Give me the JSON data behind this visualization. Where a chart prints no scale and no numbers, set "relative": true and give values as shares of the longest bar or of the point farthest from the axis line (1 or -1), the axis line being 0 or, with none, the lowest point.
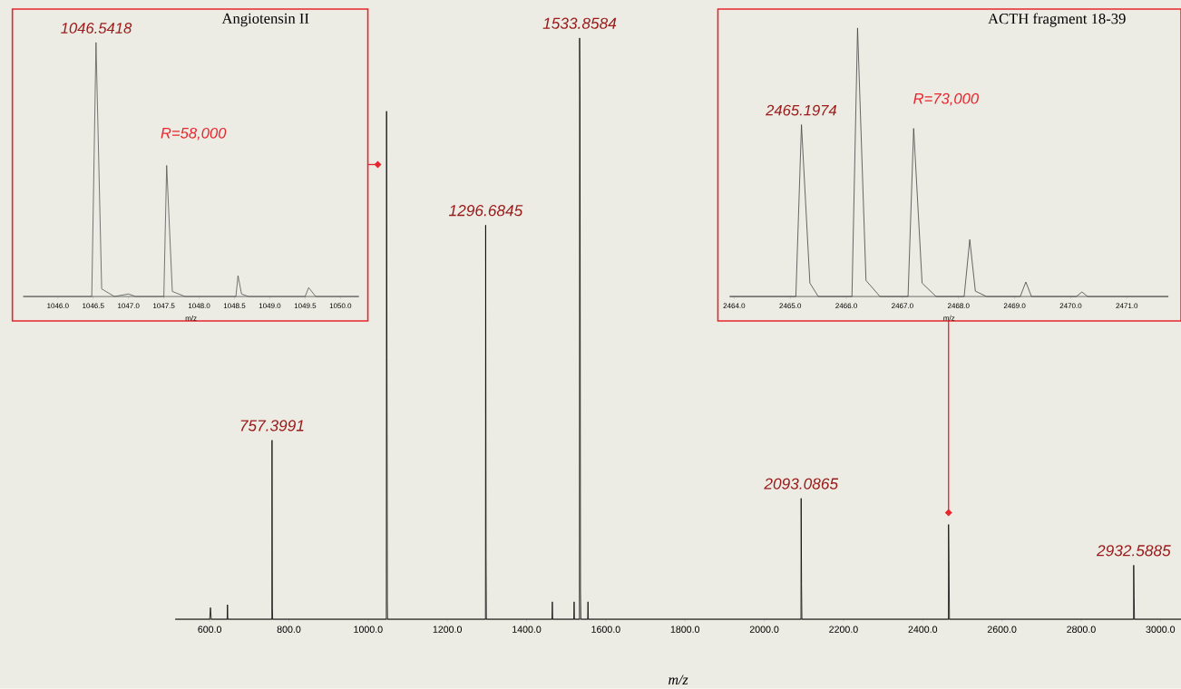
{
  "chart_data": [
    {
      "type": "line",
      "title": "Angiotensin II",
      "xlabel": "m/z",
      "relative": true,
      "color": "#555555",
      "x": [
        1045.51,
        1046.48,
        1046.54,
        1046.62,
        1046.8,
        1047.0,
        1047.1,
        1047.5,
        1047.54,
        1047.62,
        1047.8,
        1048.52,
        1048.55,
        1048.6,
        1048.7,
        1049.5,
        1049.55,
        1049.65,
        1050.26
      ],
      "values": [
        0,
        0,
        1,
        0.03,
        0,
        0.01,
        0,
        0,
        0.516,
        0.02,
        0,
        0,
        0.082,
        0.01,
        0,
        0,
        0.035,
        0,
        0
      ],
      "xlim": [
        1045.51,
        1050.26
      ],
      "xticks": [
        {
          "value": 1046.0,
          "label": "1046.0"
        },
        {
          "value": 1046.5,
          "label": "1046.5"
        },
        {
          "value": 1047.0,
          "label": "1047.0"
        },
        {
          "value": 1047.5,
          "label": "1047.5"
        },
        {
          "value": 1048.0,
          "label": "1048.0"
        },
        {
          "value": 1048.5,
          "label": "1048.5"
        },
        {
          "value": 1049.0,
          "label": "1049.0"
        },
        {
          "value": 1049.5,
          "label": "1049.5"
        },
        {
          "value": 1050.0,
          "label": "1050.0"
        }
      ],
      "annotations": [
        {
          "text": "1046.5418",
          "x": 1046.5418,
          "y": 1
        },
        "R=58,000"
      ]
    },
    {
      "type": "line",
      "title": "ACTH fragment 18-39",
      "xlabel": "m/z",
      "relative": true,
      "color": "#444444",
      "x": [
        2463.92,
        2465.1,
        2465.2,
        2465.35,
        2465.5,
        2466.1,
        2466.2,
        2466.35,
        2466.6,
        2467.1,
        2467.2,
        2467.35,
        2467.6,
        2468.1,
        2468.2,
        2468.3,
        2468.5,
        2469.1,
        2469.2,
        2469.3,
        2470.1,
        2470.2,
        2470.3,
        2471.74
      ],
      "values": [
        0,
        0,
        0.64,
        0.05,
        0,
        0,
        1,
        0.06,
        0,
        0,
        0.626,
        0.05,
        0,
        0,
        0.212,
        0.02,
        0,
        0,
        0.054,
        0,
        0,
        0.017,
        0,
        0
      ],
      "xlim": [
        2463.92,
        2471.74
      ],
      "xticks": [
        {
          "value": 2464,
          "label": "2464.0"
        },
        {
          "value": 2465,
          "label": "2465.0"
        },
        {
          "value": 2466,
          "label": "2466.0"
        },
        {
          "value": 2467,
          "label": "2467.0"
        },
        {
          "value": 2468,
          "label": "2468.0"
        },
        {
          "value": 2469,
          "label": "2469.0"
        },
        {
          "value": 2470,
          "label": "2470.0"
        },
        {
          "value": 2471,
          "label": "2471.0"
        }
      ],
      "annotations": [
        {
          "text": "2465.1974",
          "x": 2465.1974,
          "y": 0.64
        },
        "R=73,000"
      ]
    },
    {
      "type": "line",
      "xlabel": "m/z",
      "relative": true,
      "color": "#000000",
      "x": [
        513,
        600,
        602,
        604,
        644,
        645,
        646,
        756.9,
        757.4,
        758.4,
        759,
        1045.9,
        1046.54,
        1047.5,
        1048.5,
        1049,
        1296.2,
        1296.68,
        1297.7,
        1298.5,
        1464,
        1465,
        1466,
        1519,
        1520,
        1521,
        1533.4,
        1533.86,
        1534.86,
        1536,
        1537,
        1554,
        1555,
        1556,
        2092.6,
        2093.09,
        2094.1,
        2095,
        2464.7,
        2465.2,
        2466.2,
        2467.5,
        2932.1,
        2932.59,
        2933.6,
        2934.5,
        3052
      ],
      "values": [
        0,
        0,
        0.02,
        0,
        0,
        0.025,
        0,
        0,
        0.308,
        0.02,
        0,
        0,
        0.874,
        0.45,
        0.03,
        0,
        0,
        0.678,
        0.11,
        0,
        0,
        0.03,
        0,
        0,
        0.03,
        0,
        0,
        1,
        0.894,
        0.05,
        0,
        0,
        0.03,
        0,
        0,
        0.208,
        0.06,
        0,
        0,
        0.163,
        0.104,
        0,
        0,
        0.093,
        0.04,
        0,
        0
      ],
      "xlim": [
        513,
        3052
      ],
      "xticks": [
        {
          "value": 600,
          "label": "600.0"
        },
        {
          "value": 800,
          "label": "800.0"
        },
        {
          "value": 1000,
          "label": "1000.0"
        },
        {
          "value": 1200,
          "label": "1200.0"
        },
        {
          "value": 1400,
          "label": "1400.0"
        },
        {
          "value": 1600,
          "label": "1600.0"
        },
        {
          "value": 1800,
          "label": "1800.0"
        },
        {
          "value": 2000,
          "label": "2000.0"
        },
        {
          "value": 2200,
          "label": "2200.0"
        },
        {
          "value": 2400,
          "label": "2400.0"
        },
        {
          "value": 2600,
          "label": "2600.0"
        },
        {
          "value": 2800,
          "label": "2800.0"
        },
        {
          "value": 3000,
          "label": "3000.0"
        }
      ],
      "annotations": [
        {
          "text": "757.3991",
          "x": 757.3991,
          "y": 0.308
        },
        {
          "text": "1296.6845",
          "x": 1296.6845,
          "y": 0.678
        },
        {
          "text": "1533.8584",
          "x": 1533.8584,
          "y": 1
        },
        {
          "text": "2093.0865",
          "x": 2093.0865,
          "y": 0.208
        },
        {
          "text": "2932.5885",
          "x": 2932.5885,
          "y": 0.093
        }
      ]
    }
  ]
}
